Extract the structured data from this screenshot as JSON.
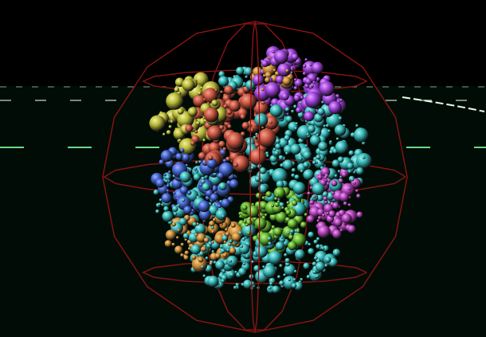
{
  "scene": {
    "background": "#000000",
    "ground_color": "#020c06",
    "grid_line_color": "#6fe88a",
    "grid_line_color_far": "#dfffe6",
    "sphere_wire_color": "#8a1414",
    "clusters": [
      {
        "name": "purple",
        "color": "#9b3fd6",
        "highlight": "#e2a6ff"
      },
      {
        "name": "olive",
        "color": "#b5b637",
        "highlight": "#f3f39a"
      },
      {
        "name": "red-orange",
        "color": "#c4513c",
        "highlight": "#f5a08e"
      },
      {
        "name": "blue",
        "color": "#3f5fc8",
        "highlight": "#9fb3ff"
      },
      {
        "name": "cyan",
        "color": "#33b3b3",
        "highlight": "#a9f3f0"
      },
      {
        "name": "amber",
        "color": "#c98a35",
        "highlight": "#f6cf8c"
      },
      {
        "name": "green",
        "color": "#5fb22c",
        "highlight": "#c4f28e"
      },
      {
        "name": "magenta",
        "color": "#b03fb8",
        "highlight": "#f1a4f5"
      }
    ]
  }
}
